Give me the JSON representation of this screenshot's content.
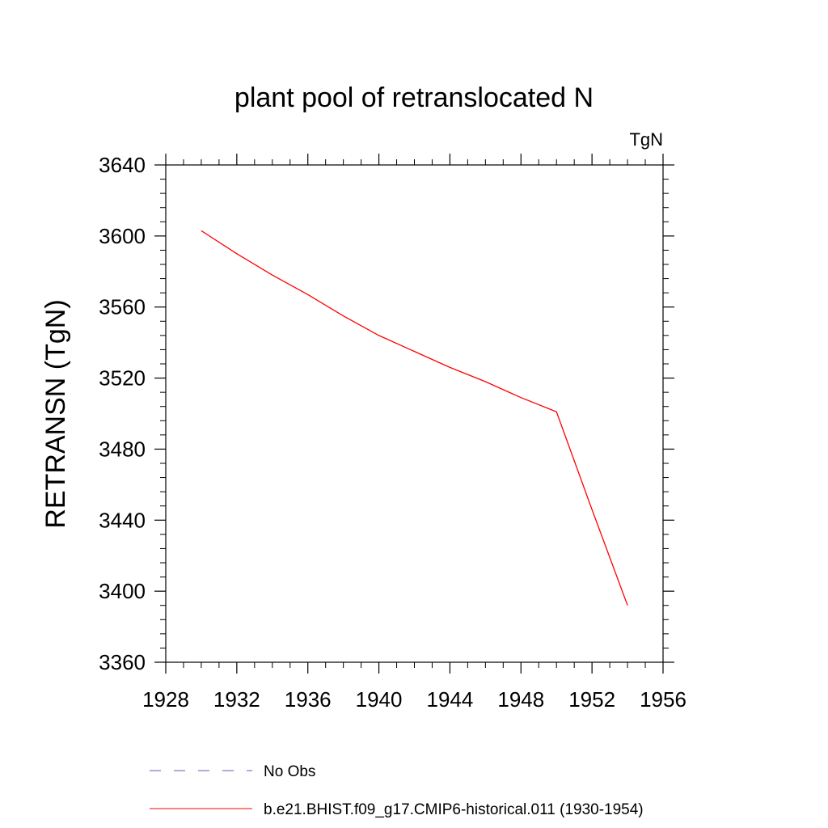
{
  "chart_data": {
    "type": "line",
    "title": "plant pool of retranslocated N",
    "units_label": "TgN",
    "ylabel": "RETRANSN  (TgN)",
    "xlabel": "",
    "xlim": [
      1928,
      1956
    ],
    "ylim": [
      3360,
      3640
    ],
    "x_ticks": [
      1928,
      1932,
      1936,
      1940,
      1944,
      1948,
      1952,
      1956
    ],
    "y_ticks": [
      3360,
      3400,
      3440,
      3480,
      3520,
      3560,
      3600,
      3640
    ],
    "x_minor_step": 1,
    "y_minor_step": 8,
    "grid": false,
    "legend_placement": "bottom",
    "series": [
      {
        "name": "No Obs",
        "color": "#5b5bb3",
        "dash": "dashed",
        "x": [],
        "y": []
      },
      {
        "name": "b.e21.BHIST.f09_g17.CMIP6-historical.011 (1930-1954)",
        "color": "#ff0000",
        "dash": "solid",
        "x": [
          1930,
          1932,
          1934,
          1936,
          1938,
          1940,
          1942,
          1944,
          1946,
          1948,
          1950,
          1952,
          1954
        ],
        "y": [
          3603,
          3590,
          3578,
          3567,
          3555,
          3544,
          3535,
          3526,
          3518,
          3509,
          3501,
          3446,
          3392
        ]
      }
    ]
  }
}
